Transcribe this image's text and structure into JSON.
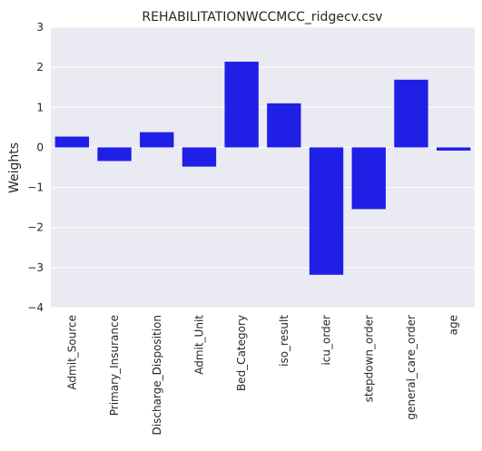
{
  "chart_data": {
    "type": "bar",
    "title": "REHABILITATIONWCCMCC_ridgecv.csv",
    "xlabel": "",
    "ylabel": "Weights",
    "categories": [
      "Admit_Source",
      "Primary_Insurance",
      "Discharge_Disposition",
      "Admit_Unit",
      "Bed_Category",
      "iso_result",
      "icu_order",
      "stepdown_order",
      "general_care_order",
      "age"
    ],
    "values": [
      0.27,
      -0.34,
      0.38,
      -0.48,
      2.14,
      1.1,
      -3.18,
      -1.54,
      1.69,
      -0.08
    ],
    "ylim": [
      -4,
      3
    ],
    "yticks": [
      -4,
      -3,
      -2,
      -1,
      0,
      1,
      2,
      3
    ],
    "grid": true,
    "bar_color": "#1f1fe6",
    "background_color": "#eaeaf2"
  }
}
